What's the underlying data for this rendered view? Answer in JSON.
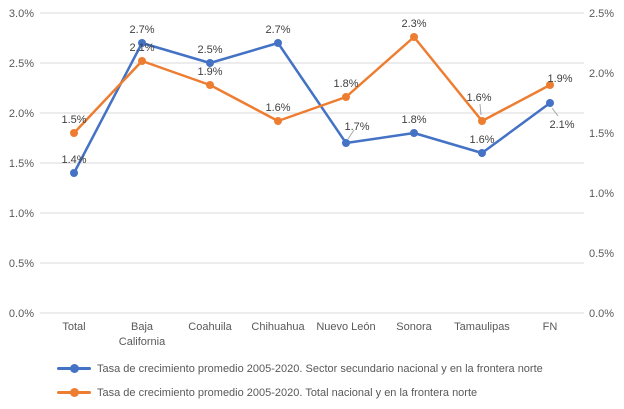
{
  "chart_data": {
    "type": "line",
    "title": "",
    "categories": [
      "Total",
      "Baja California",
      "Coahuila",
      "Chihuahua",
      "Nuevo León",
      "Sonora",
      "Tamaulipas",
      "FN"
    ],
    "series": [
      {
        "name": "Tasa de crecimiento promedio 2005-2020. Sector secundario nacional y en la frontera norte",
        "color": "#4472C4",
        "axis": "left",
        "values": [
          1.4,
          2.7,
          2.5,
          2.7,
          1.7,
          1.8,
          1.6,
          2.1
        ],
        "labels": [
          "1.4%",
          "2.7%",
          "2.5%",
          "2.7%",
          "1.7%",
          "1.8%",
          "1.6%",
          "2.1%"
        ]
      },
      {
        "name": "Tasa de crecimiento promedio 2005-2020. Total nacional y en la frontera norte",
        "color": "#ED7D31",
        "axis": "right",
        "values": [
          1.5,
          2.1,
          1.9,
          1.6,
          1.8,
          2.3,
          1.6,
          1.9
        ],
        "labels": [
          "1.5%",
          "2.1%",
          "1.9%",
          "1.6%",
          "1.8%",
          "2.3%",
          "1.6%",
          "1.9%"
        ]
      }
    ],
    "axes": {
      "left": {
        "min": 0.0,
        "max": 3.0,
        "step": 0.5,
        "tick_labels": [
          "3.0%",
          "2.5%",
          "2.0%",
          "1.5%",
          "1.0%",
          "0.5%",
          "0.0%"
        ]
      },
      "right": {
        "min": 0.0,
        "max": 2.5,
        "step": 0.5,
        "tick_labels": [
          "2.5%",
          "2.0%",
          "1.5%",
          "1.0%",
          "0.5%",
          "0.0%"
        ]
      }
    },
    "grid": true,
    "legend_position": "bottom-left",
    "colors": {
      "tick_text": "#595959",
      "category_text": "#595959",
      "data_label_text": "#404040",
      "gridline": "#D9D9D9",
      "leader_line": "#A6A6A6",
      "background": "#FFFFFF"
    }
  }
}
